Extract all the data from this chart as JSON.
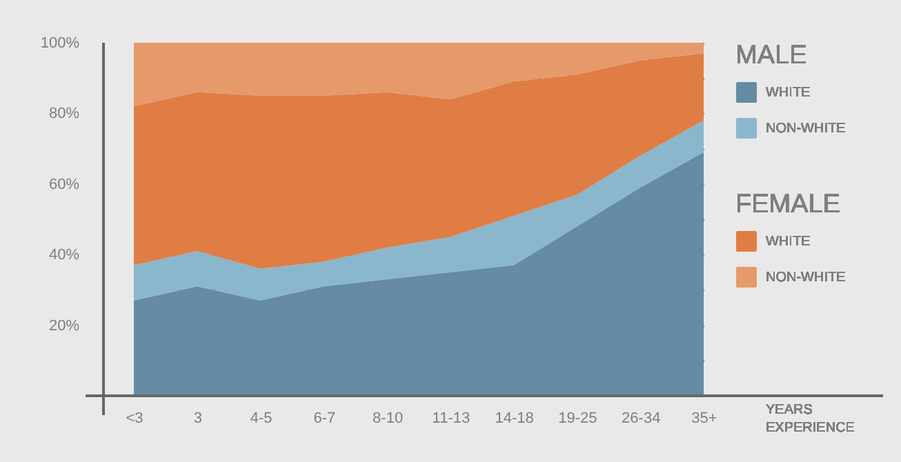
{
  "chart_data": {
    "type": "area",
    "stacked": true,
    "categories": [
      "<3",
      "3",
      "4-5",
      "6-7",
      "8-10",
      "11-13",
      "14-18",
      "19-25",
      "26-34",
      "35+"
    ],
    "xlabel": "YEARS EXPERIENCE",
    "annotations": [
      "MALE",
      "FEMALE"
    ],
    "series": [
      {
        "name": "WHITE",
        "color": "#668ba4",
        "values": [
          27,
          31,
          27,
          31,
          33,
          35,
          37,
          48,
          59,
          69
        ]
      },
      {
        "name": "NON-WHITE",
        "color": "#8ab7cc",
        "values": [
          10,
          10,
          9,
          7,
          9,
          10,
          14,
          9,
          9,
          9
        ]
      },
      {
        "name": "WHITE",
        "color": "#e07d45",
        "values": [
          45,
          45,
          49,
          47,
          44,
          39,
          38,
          34,
          27,
          19
        ]
      },
      {
        "name": "NON-WHITE",
        "color": "#e6996b",
        "values": [
          18,
          14,
          15,
          15,
          14,
          16,
          11,
          9,
          5,
          3
        ]
      }
    ],
    "ylim": [
      0,
      100
    ],
    "yticks": [
      {
        "value": 0,
        "label": null
      },
      {
        "value": 10,
        "label": null
      },
      {
        "value": 20,
        "label": "20%"
      },
      {
        "value": 30,
        "label": null
      },
      {
        "value": 40,
        "label": "40%"
      },
      {
        "value": 50,
        "label": null
      },
      {
        "value": 60,
        "label": "60%"
      },
      {
        "value": 70,
        "label": null
      },
      {
        "value": 80,
        "label": "80%"
      },
      {
        "value": 90,
        "label": null
      },
      {
        "value": 100,
        "label": "100%"
      }
    ],
    "grid": "y",
    "legend": "right"
  }
}
